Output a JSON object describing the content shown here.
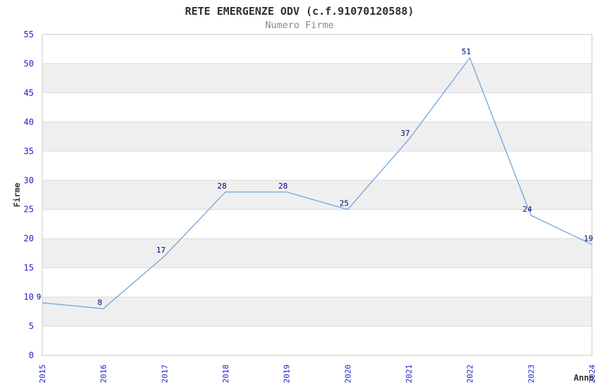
{
  "chart_data": {
    "type": "line",
    "title": "RETE EMERGENZE ODV (c.f.91070120588)",
    "subtitle": "Numero Firme",
    "xlabel": "Anno",
    "ylabel": "Firme",
    "x": [
      "2015",
      "2016",
      "2017",
      "2018",
      "2019",
      "2020",
      "2021",
      "2022",
      "2023",
      "2024"
    ],
    "series": [
      {
        "name": "Numero Firme",
        "values": [
          9,
          8,
          17,
          28,
          28,
          25,
          37,
          51,
          24,
          19
        ]
      }
    ],
    "ylim": [
      0,
      55
    ],
    "ytick_step": 5,
    "yticks": [
      0,
      5,
      10,
      15,
      20,
      25,
      30,
      35,
      40,
      45,
      50,
      55
    ],
    "grid": "horizontal",
    "banded_background": true,
    "legend_position": "none",
    "colors": {
      "line": "#6FA5DC",
      "tick_label": "#2222CC",
      "data_label": "#000080",
      "band": "#EFEFEF",
      "gridline": "#DCDCDC",
      "plot_border": "#C8C8C8",
      "title": "#303030",
      "subtitle": "#8A8A8A",
      "background": "#FFFFFF"
    }
  }
}
